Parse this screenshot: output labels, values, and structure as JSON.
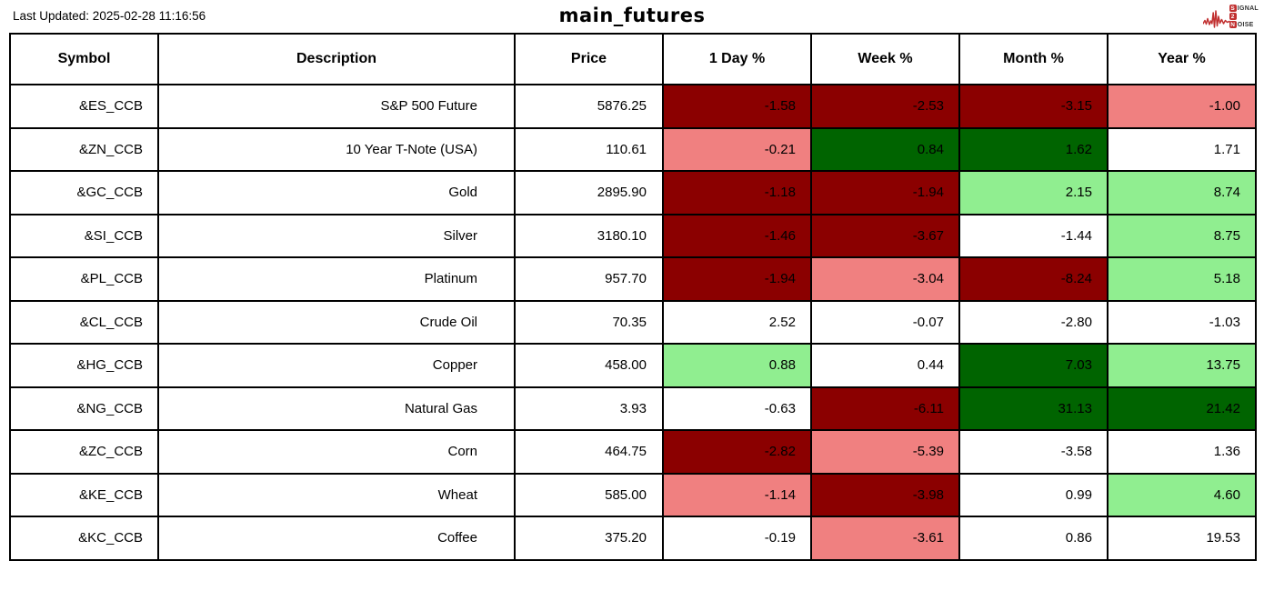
{
  "header": {
    "last_updated": "Last Updated: 2025-02-28 11:16:56",
    "title": "main_futures",
    "logo": {
      "word1_initial": "S",
      "word1_rest": "IGNAL",
      "word2": "2",
      "word3_initial": "N",
      "word3_rest": "OISE",
      "accent_color": "#c13030"
    }
  },
  "palette": {
    "strong_down": "#8B0000",
    "down": "#F08080",
    "strong_up": "#006400",
    "up": "#90EE90",
    "neutral": "#FFFFFF"
  },
  "table": {
    "columns": [
      "Symbol",
      "Description",
      "Price",
      "1 Day %",
      "Week %",
      "Month %",
      "Year %"
    ],
    "rows": [
      {
        "symbol": "&ES_CCB",
        "description": "S&P 500 Future",
        "price": "5876.25",
        "day": "-1.58",
        "week": "-2.53",
        "month": "-3.15",
        "year": "-1.00",
        "day_color": "strong_down",
        "week_color": "strong_down",
        "month_color": "strong_down",
        "year_color": "down"
      },
      {
        "symbol": "&ZN_CCB",
        "description": "10 Year T-Note (USA)",
        "price": "110.61",
        "day": "-0.21",
        "week": "0.84",
        "month": "1.62",
        "year": "1.71",
        "day_color": "down",
        "week_color": "strong_up",
        "month_color": "strong_up",
        "year_color": "neutral"
      },
      {
        "symbol": "&GC_CCB",
        "description": "Gold",
        "price": "2895.90",
        "day": "-1.18",
        "week": "-1.94",
        "month": "2.15",
        "year": "8.74",
        "day_color": "strong_down",
        "week_color": "strong_down",
        "month_color": "up",
        "year_color": "up"
      },
      {
        "symbol": "&SI_CCB",
        "description": "Silver",
        "price": "3180.10",
        "day": "-1.46",
        "week": "-3.67",
        "month": "-1.44",
        "year": "8.75",
        "day_color": "strong_down",
        "week_color": "strong_down",
        "month_color": "neutral",
        "year_color": "up"
      },
      {
        "symbol": "&PL_CCB",
        "description": "Platinum",
        "price": "957.70",
        "day": "-1.94",
        "week": "-3.04",
        "month": "-8.24",
        "year": "5.18",
        "day_color": "strong_down",
        "week_color": "down",
        "month_color": "strong_down",
        "year_color": "up"
      },
      {
        "symbol": "&CL_CCB",
        "description": "Crude Oil",
        "price": "70.35",
        "day": "2.52",
        "week": "-0.07",
        "month": "-2.80",
        "year": "-1.03",
        "day_color": "neutral",
        "week_color": "neutral",
        "month_color": "neutral",
        "year_color": "neutral"
      },
      {
        "symbol": "&HG_CCB",
        "description": "Copper",
        "price": "458.00",
        "day": "0.88",
        "week": "0.44",
        "month": "7.03",
        "year": "13.75",
        "day_color": "up",
        "week_color": "neutral",
        "month_color": "strong_up",
        "year_color": "up"
      },
      {
        "symbol": "&NG_CCB",
        "description": "Natural Gas",
        "price": "3.93",
        "day": "-0.63",
        "week": "-6.11",
        "month": "31.13",
        "year": "21.42",
        "day_color": "neutral",
        "week_color": "strong_down",
        "month_color": "strong_up",
        "year_color": "strong_up"
      },
      {
        "symbol": "&ZC_CCB",
        "description": "Corn",
        "price": "464.75",
        "day": "-2.82",
        "week": "-5.39",
        "month": "-3.58",
        "year": "1.36",
        "day_color": "strong_down",
        "week_color": "down",
        "month_color": "neutral",
        "year_color": "neutral"
      },
      {
        "symbol": "&KE_CCB",
        "description": "Wheat",
        "price": "585.00",
        "day": "-1.14",
        "week": "-3.98",
        "month": "0.99",
        "year": "4.60",
        "day_color": "down",
        "week_color": "strong_down",
        "month_color": "neutral",
        "year_color": "up"
      },
      {
        "symbol": "&KC_CCB",
        "description": "Coffee",
        "price": "375.20",
        "day": "-0.19",
        "week": "-3.61",
        "month": "0.86",
        "year": "19.53",
        "day_color": "neutral",
        "week_color": "down",
        "month_color": "neutral",
        "year_color": "neutral"
      }
    ]
  }
}
